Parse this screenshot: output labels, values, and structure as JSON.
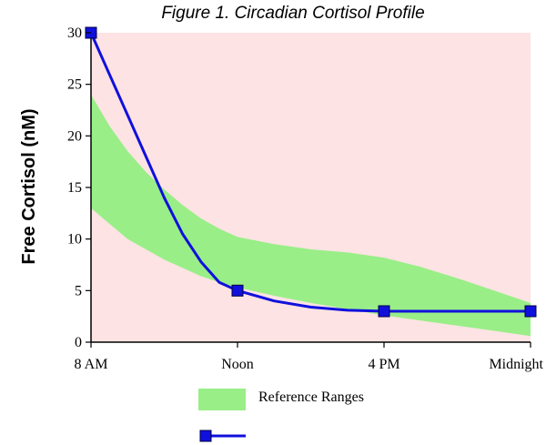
{
  "chart_data": {
    "type": "line",
    "title": "Figure 1.  Circadian Cortisol Profile",
    "ylabel": "Free Cortisol (nM)",
    "xlabel": "",
    "categories": [
      "8 AM",
      "Noon",
      "4 PM",
      "Midnight"
    ],
    "x": [
      0,
      4,
      8,
      12
    ],
    "xlim": [
      0,
      12
    ],
    "ylim": [
      0,
      30
    ],
    "yticks": [
      0,
      5,
      10,
      15,
      20,
      25,
      30
    ],
    "grid": false,
    "legend_position": "bottom",
    "plot_background": "#fde3e3",
    "band_color": "#99ee88",
    "line_color": "#1010dd",
    "marker_color": "#1010dd",
    "reference_range": {
      "name": "Reference Ranges",
      "x": [
        0,
        0.5,
        1,
        1.5,
        2,
        2.5,
        3,
        3.5,
        4,
        5,
        6,
        7,
        8,
        9,
        10,
        11,
        12
      ],
      "upper": [
        24,
        21,
        18.5,
        16.5,
        14.8,
        13.3,
        12,
        11,
        10.2,
        9.5,
        9,
        8.7,
        8.2,
        7.3,
        6.2,
        5,
        3.8
      ],
      "lower": [
        13,
        11.5,
        10,
        9,
        8,
        7.2,
        6.4,
        5.8,
        5.3,
        4.5,
        3.8,
        3.2,
        2.6,
        2.1,
        1.6,
        1.1,
        0.6
      ]
    },
    "series": [
      {
        "x": [
          0,
          0.5,
          1,
          1.5,
          2,
          2.5,
          3,
          3.5,
          4,
          5,
          6,
          7,
          8,
          12
        ],
        "values": [
          30,
          26,
          22,
          18,
          14,
          10.5,
          7.8,
          5.8,
          5,
          4,
          3.4,
          3.1,
          3,
          3
        ],
        "markers_at": [
          0,
          4,
          8,
          12
        ],
        "marker_values": [
          30,
          5,
          3,
          3
        ]
      }
    ],
    "legend": [
      {
        "label": "Reference Ranges",
        "kind": "band"
      },
      {
        "label": "",
        "kind": "line-marker"
      }
    ]
  }
}
